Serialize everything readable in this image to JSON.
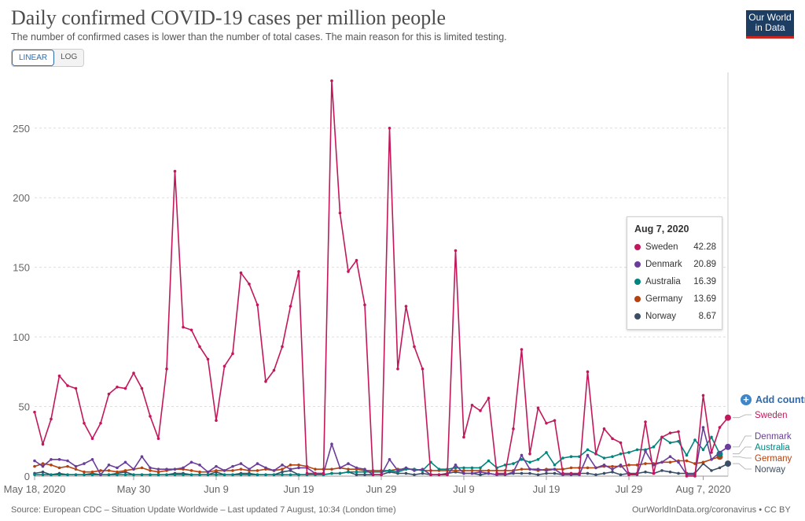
{
  "header": {
    "title": "Daily confirmed COVID-19 cases per million people",
    "subtitle": "The number of confirmed cases is lower than the number of total cases. The main reason for this is limited testing.",
    "logo_line1": "Our World",
    "logo_line2": "in Data"
  },
  "scale_toggle": {
    "linear_label": "LINEAR",
    "log_label": "LOG",
    "selected": "LINEAR"
  },
  "tooltip": {
    "date": "Aug 7, 2020",
    "rows": [
      {
        "name": "Sweden",
        "value": "42.28",
        "color": "#c2185b"
      },
      {
        "name": "Denmark",
        "value": "20.89",
        "color": "#6a3d9a"
      },
      {
        "name": "Australia",
        "value": "16.39",
        "color": "#00847e"
      },
      {
        "name": "Germany",
        "value": "13.69",
        "color": "#b5420f"
      },
      {
        "name": "Norway",
        "value": "8.67",
        "color": "#3c4e66"
      }
    ]
  },
  "add_country_label": "Add country",
  "footer": {
    "source": "Source: European CDC – Situation Update Worldwide – Last updated 7 August, 10:34 (London time)",
    "credit": "OurWorldInData.org/coronavirus • CC BY"
  },
  "chart_data": {
    "type": "line",
    "title": "Daily confirmed COVID-19 cases per million people",
    "xlabel": "",
    "ylabel": "",
    "ylim": [
      0,
      290
    ],
    "yticks": [
      0,
      50,
      100,
      150,
      200,
      250
    ],
    "x_start": "May 18, 2020",
    "x_tick_labels": [
      "May 18, 2020",
      "May 30",
      "Jun 9",
      "Jun 19",
      "Jun 29",
      "Jul 9",
      "Jul 19",
      "Jul 29",
      "Aug 7, 2020"
    ],
    "x_tick_index": [
      0,
      12,
      22,
      32,
      42,
      52,
      62,
      72,
      81
    ],
    "grid": true,
    "legend": "end-labels right",
    "series": [
      {
        "name": "Sweden",
        "color": "#c2185b",
        "values": [
          46,
          23,
          41,
          72,
          65,
          63,
          38,
          27,
          38,
          59,
          64,
          63,
          74,
          63,
          43,
          27,
          77,
          219,
          107,
          105,
          93,
          84,
          40,
          79,
          88,
          146,
          138,
          123,
          68,
          76,
          93,
          122,
          147,
          2,
          2,
          2,
          284,
          189,
          147,
          155,
          123,
          1,
          1,
          250,
          77,
          122,
          93,
          77,
          1,
          1,
          1,
          162,
          28,
          51,
          47,
          56,
          2,
          2,
          34,
          91,
          16,
          49,
          38,
          40,
          2,
          2,
          2,
          75,
          16,
          34,
          27,
          24,
          1,
          2,
          39,
          2,
          28,
          31,
          32,
          0,
          0,
          58,
          17,
          35,
          42
        ]
      },
      {
        "name": "Denmark",
        "color": "#6a3d9a",
        "values": [
          11,
          7,
          12,
          12,
          11,
          7,
          9,
          12,
          1,
          8,
          6,
          10,
          5,
          14,
          6,
          5,
          5,
          5,
          6,
          10,
          8,
          3,
          7,
          4,
          7,
          9,
          5,
          9,
          6,
          4,
          8,
          5,
          6,
          6,
          2,
          2,
          23,
          6,
          9,
          6,
          5,
          1,
          1,
          12,
          4,
          6,
          4,
          5,
          1,
          1,
          1,
          8,
          2,
          2,
          3,
          2,
          1,
          1,
          3,
          15,
          5,
          5,
          4,
          5,
          1,
          1,
          1,
          15,
          6,
          8,
          5,
          8,
          1,
          1,
          18,
          8,
          10,
          14,
          10,
          1,
          1,
          35,
          12,
          17,
          21
        ]
      },
      {
        "name": "Australia",
        "color": "#00847e",
        "values": [
          1,
          1,
          1,
          1,
          1,
          1,
          1,
          1,
          1,
          1,
          1,
          1,
          1,
          1,
          1,
          1,
          1,
          1,
          1,
          1,
          1,
          1,
          1,
          1,
          1,
          1,
          1,
          1,
          1,
          1,
          1,
          1,
          1,
          1,
          1,
          1,
          2,
          2,
          3,
          3,
          3,
          3,
          3,
          4,
          3,
          5,
          5,
          4,
          10,
          5,
          5,
          6,
          6,
          6,
          6,
          11,
          6,
          8,
          9,
          12,
          10,
          12,
          17,
          8,
          13,
          14,
          14,
          19,
          16,
          13,
          14,
          16,
          17,
          19,
          19,
          21,
          28,
          24,
          25,
          15,
          26,
          19,
          28,
          16
        ]
      },
      {
        "name": "Germany",
        "color": "#b5420f",
        "values": [
          7,
          9,
          8,
          6,
          7,
          5,
          3,
          3,
          4,
          4,
          3,
          4,
          5,
          6,
          4,
          3,
          4,
          5,
          5,
          4,
          3,
          3,
          4,
          4,
          4,
          5,
          4,
          4,
          5,
          4,
          5,
          8,
          8,
          7,
          5,
          5,
          5,
          6,
          5,
          5,
          4,
          4,
          4,
          4,
          5,
          5,
          5,
          4,
          4,
          4,
          4,
          4,
          4,
          4,
          4,
          4,
          4,
          4,
          4,
          5,
          5,
          4,
          5,
          5,
          5,
          6,
          6,
          6,
          6,
          7,
          7,
          7,
          8,
          8,
          9,
          9,
          10,
          10,
          11,
          11,
          9,
          10,
          12,
          14
        ]
      },
      {
        "name": "Norway",
        "color": "#3c4e66",
        "values": [
          2,
          3,
          1,
          2,
          1,
          1,
          1,
          2,
          1,
          1,
          2,
          3,
          1,
          1,
          1,
          1,
          1,
          2,
          2,
          1,
          1,
          1,
          3,
          1,
          1,
          2,
          2,
          1,
          1,
          1,
          3,
          4,
          1,
          1,
          1,
          1,
          2,
          2,
          3,
          1,
          1,
          1,
          1,
          3,
          2,
          2,
          1,
          2,
          1,
          1,
          2,
          3,
          2,
          2,
          1,
          2,
          1,
          1,
          2,
          2,
          2,
          1,
          2,
          2,
          1,
          1,
          2,
          2,
          1,
          2,
          3,
          1,
          2,
          2,
          3,
          2,
          4,
          3,
          2,
          2,
          2,
          9,
          4,
          6,
          9
        ]
      }
    ]
  }
}
